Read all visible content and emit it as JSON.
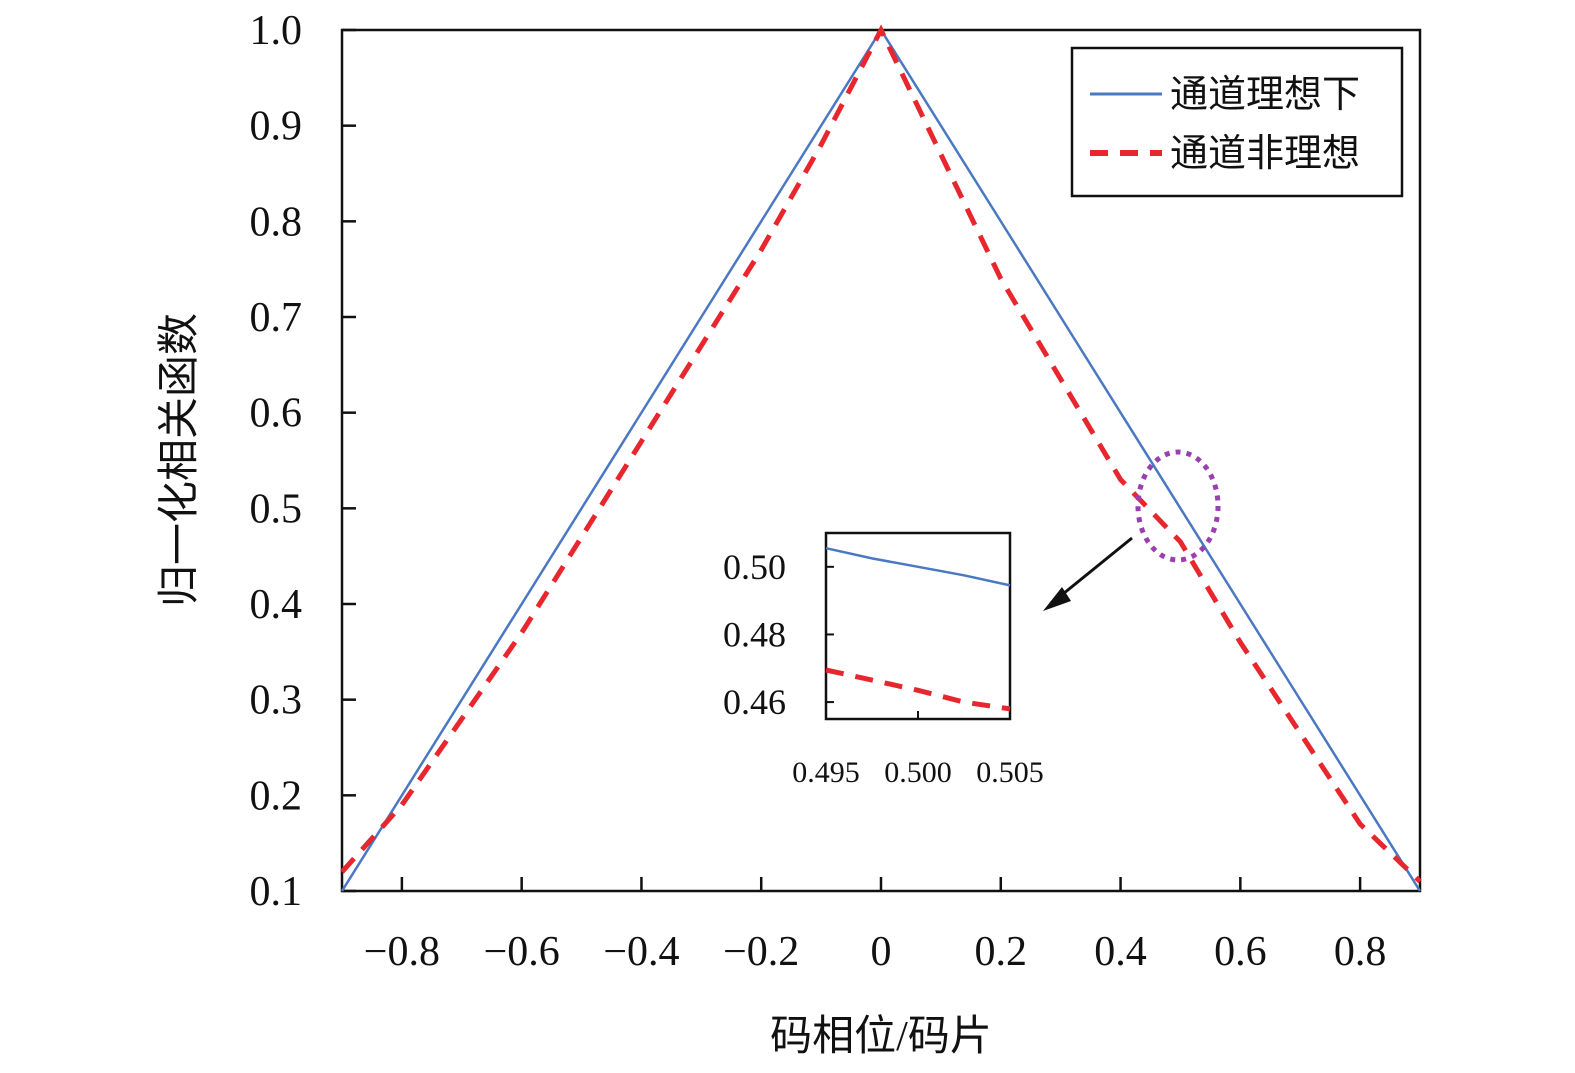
{
  "chart_data": {
    "type": "line",
    "title": "",
    "xlabel": "码相位/码片",
    "ylabel": "归一化相关函数",
    "xlim": [
      -0.9,
      0.9
    ],
    "ylim": [
      0.1,
      1.0
    ],
    "x_ticks": [
      -0.8,
      -0.6,
      -0.4,
      -0.2,
      0,
      0.2,
      0.4,
      0.6,
      0.8
    ],
    "x_tick_labels": [
      "−0.8",
      "−0.6",
      "−0.4",
      "−0.2",
      "0",
      "0.2",
      "0.4",
      "0.6",
      "0.8"
    ],
    "y_ticks": [
      0.1,
      0.2,
      0.3,
      0.4,
      0.5,
      0.6,
      0.7,
      0.8,
      0.9,
      1.0
    ],
    "y_tick_labels": [
      "0.1",
      "0.2",
      "0.3",
      "0.4",
      "0.5",
      "0.6",
      "0.7",
      "0.8",
      "0.9",
      "1.0"
    ],
    "grid": false,
    "legend_position": "top-right",
    "series": [
      {
        "name": "通道理想下",
        "color": "#4a78c2",
        "style": "solid",
        "x": [
          -0.9,
          -0.6,
          -0.3,
          0,
          0.3,
          0.6,
          0.9
        ],
        "y": [
          0.1,
          0.4,
          0.7,
          1.0,
          0.7,
          0.4,
          0.1
        ]
      },
      {
        "name": "通道非理想",
        "color": "#e8262d",
        "style": "dashed",
        "x": [
          -0.9,
          -0.8,
          -0.6,
          -0.4,
          -0.2,
          -0.1,
          0,
          0.1,
          0.2,
          0.4,
          0.5,
          0.6,
          0.8,
          0.9
        ],
        "y": [
          0.12,
          0.19,
          0.37,
          0.57,
          0.77,
          0.88,
          1.0,
          0.87,
          0.74,
          0.53,
          0.465,
          0.36,
          0.17,
          0.11
        ]
      }
    ],
    "inset": {
      "xlim": [
        0.495,
        0.505
      ],
      "ylim": [
        0.455,
        0.51
      ],
      "x_tick_labels": [
        "0.495",
        "0.500",
        "0.505"
      ],
      "x_ticks": [
        0.495,
        0.5,
        0.505
      ],
      "y_tick_labels": [
        "0.50",
        "0.48",
        "0.46"
      ],
      "y_ticks": [
        0.5,
        0.48,
        0.46
      ],
      "series": [
        {
          "color": "#4a78c2",
          "style": "solid",
          "x": [
            0.495,
            0.4975,
            0.5,
            0.5025,
            0.505
          ],
          "y": [
            0.5055,
            0.5025,
            0.5,
            0.4975,
            0.4945
          ]
        },
        {
          "color": "#e8262d",
          "style": "dashed",
          "x": [
            0.495,
            0.4975,
            0.5,
            0.5025,
            0.505
          ],
          "y": [
            0.4695,
            0.4665,
            0.4635,
            0.46,
            0.458
          ]
        }
      ]
    },
    "highlight_color": "#9b3fb0"
  }
}
